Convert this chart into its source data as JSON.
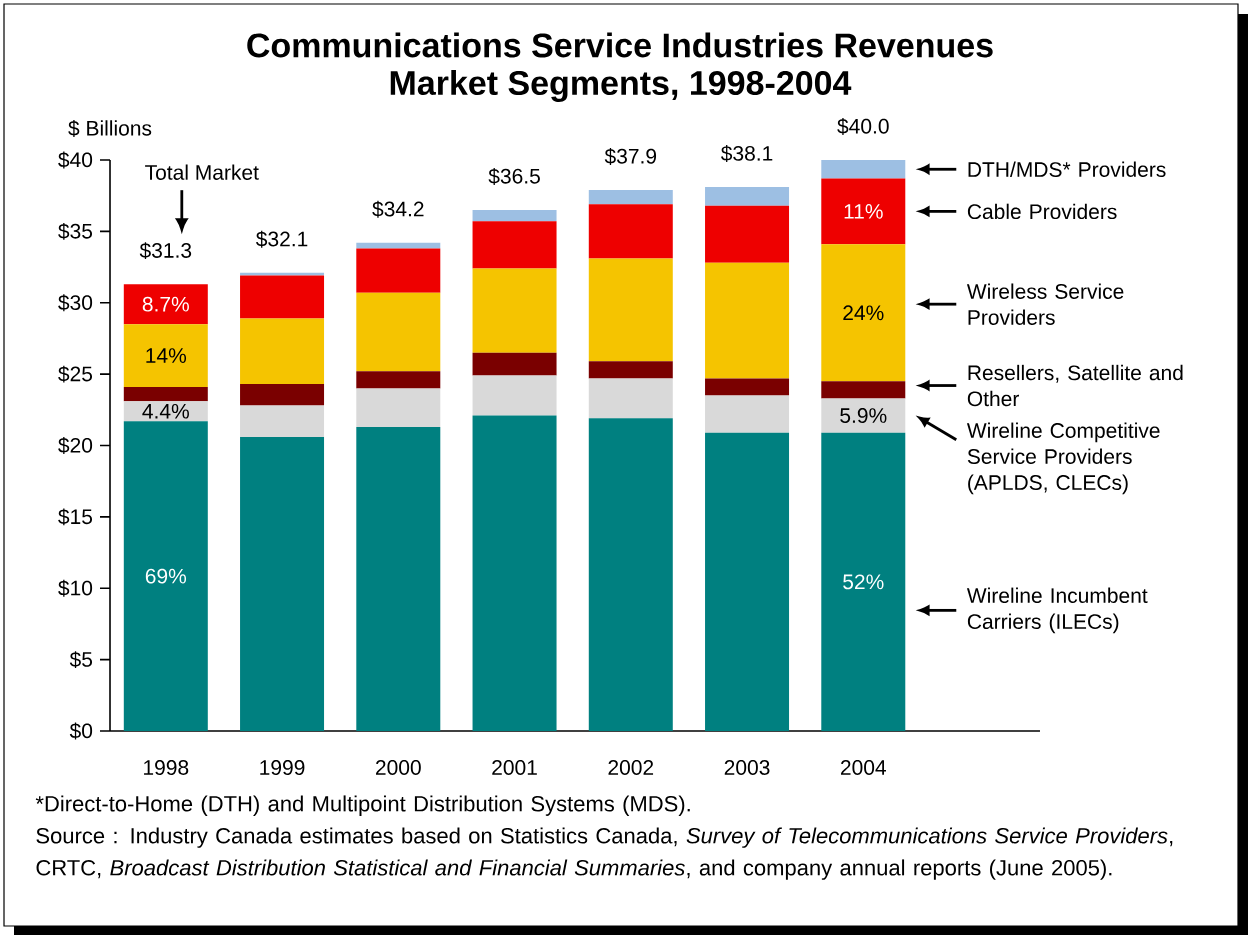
{
  "chart_data": {
    "type": "bar",
    "stacked": true,
    "title": "Communications Service Industries Revenues",
    "subtitle": "Market Segments, 1998-2004",
    "ylabel": "$ Billions",
    "categories": [
      "1998",
      "1999",
      "2000",
      "2001",
      "2002",
      "2003",
      "2004"
    ],
    "ylim": [
      0,
      40
    ],
    "yticks": [
      {
        "value": 0,
        "label": "$0"
      },
      {
        "value": 5,
        "label": "$5"
      },
      {
        "value": 10,
        "label": "$10"
      },
      {
        "value": 15,
        "label": "$15"
      },
      {
        "value": 20,
        "label": "$20"
      },
      {
        "value": 25,
        "label": "$25"
      },
      {
        "value": 30,
        "label": "$30"
      },
      {
        "value": 35,
        "label": "$35"
      },
      {
        "value": 40,
        "label": "$40"
      }
    ],
    "series": [
      {
        "name": "Wireline Incumbent Carriers (ILECs)",
        "color": "#008080",
        "values": [
          21.7,
          20.6,
          21.3,
          22.1,
          21.9,
          20.9,
          20.9
        ]
      },
      {
        "name": "Wireline Competitive Service Providers (APLDS, CLECs)",
        "color": "#d9d9d9",
        "values": [
          1.4,
          2.2,
          2.7,
          2.8,
          2.8,
          2.6,
          2.4
        ]
      },
      {
        "name": "Resellers, Satellite and Other",
        "color": "#7a0000",
        "values": [
          1.0,
          1.5,
          1.2,
          1.6,
          1.2,
          1.2,
          1.2
        ]
      },
      {
        "name": "Wireless Service Providers",
        "color": "#f5c400",
        "values": [
          4.4,
          4.6,
          5.5,
          5.9,
          7.2,
          8.1,
          9.6
        ]
      },
      {
        "name": "Cable Providers",
        "color": "#ee0000",
        "values": [
          2.8,
          3.0,
          3.1,
          3.3,
          3.8,
          4.0,
          4.6
        ]
      },
      {
        "name": "DTH/MDS* Providers",
        "color": "#9dbfe3",
        "values": [
          null,
          0.2,
          0.4,
          0.8,
          1.0,
          1.3,
          1.3
        ]
      }
    ],
    "totals": [
      "$31.3",
      "$32.1",
      "$34.2",
      "$36.5",
      "$37.9",
      "$38.1",
      "$40.0"
    ],
    "annotations": [
      "Total Market",
      "69%",
      "4.4%",
      "14%",
      "8.7%",
      "52%",
      "5.9%",
      "24%",
      "11%",
      "*Direct-to-Home (DTH) and Multipoint Distribution Systems (MDS).",
      "Source : Industry Canada estimates based on Statistics Canada, *Survey of Telecommunications Service Providers*, CRTC, *Broadcast Distribution Statistical and Financial Summaries*, and company annual reports (June 2005)."
    ],
    "grid": false,
    "legend": false
  }
}
